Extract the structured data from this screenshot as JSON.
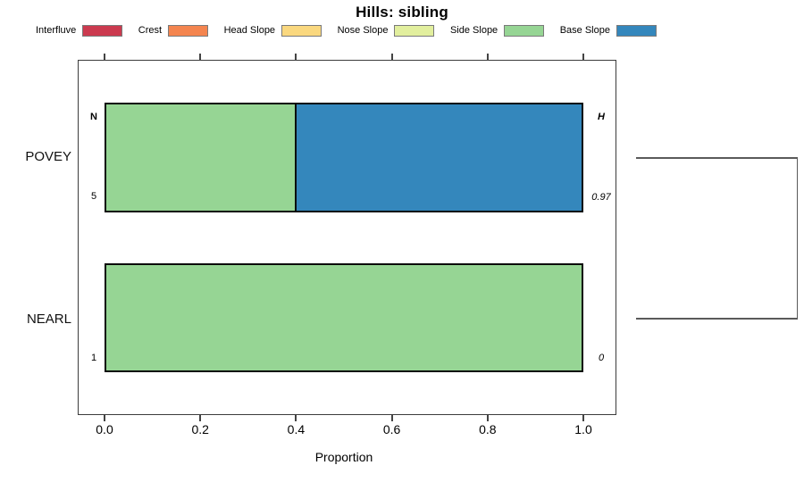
{
  "title": "Hills: sibling",
  "legend": {
    "items": [
      {
        "label": "Interfluve",
        "color": "#cb3a4f"
      },
      {
        "label": "Crest",
        "color": "#f4854f"
      },
      {
        "label": "Head Slope",
        "color": "#fad87f"
      },
      {
        "label": "Nose Slope",
        "color": "#e2ef9e"
      },
      {
        "label": "Side Slope",
        "color": "#96d594"
      },
      {
        "label": "Base Slope",
        "color": "#3487bc"
      }
    ]
  },
  "chart_data": {
    "type": "bar",
    "orientation": "horizontal",
    "stacked": true,
    "title": "Hills: sibling",
    "xlabel": "Proportion",
    "xlim": [
      0.0,
      1.0
    ],
    "xticks": [
      0.0,
      0.2,
      0.4,
      0.6,
      0.8,
      1.0
    ],
    "xtick_labels": [
      "0.0",
      "0.2",
      "0.4",
      "0.6",
      "0.8",
      "1.0"
    ],
    "grid": false,
    "legend_position": "top",
    "legend_entries": [
      "Interfluve",
      "Crest",
      "Head Slope",
      "Nose Slope",
      "Side Slope",
      "Base Slope"
    ],
    "categories": [
      "POVEY",
      "NEARL"
    ],
    "series": [
      {
        "name": "Side Slope",
        "color": "#96d594",
        "values": [
          0.4,
          1.0
        ]
      },
      {
        "name": "Base Slope",
        "color": "#3487bc",
        "values": [
          0.6,
          0.0
        ]
      }
    ],
    "annotations": {
      "left_header": "N",
      "right_header": "H",
      "rows": [
        {
          "category": "POVEY",
          "n": "5",
          "h": "0.97"
        },
        {
          "category": "NEARL",
          "n": "1",
          "h": "0"
        }
      ]
    },
    "dendrogram": {
      "description": "right-side cluster bracket joining POVEY and NEARL rows",
      "joins": [
        "POVEY",
        "NEARL"
      ]
    }
  }
}
